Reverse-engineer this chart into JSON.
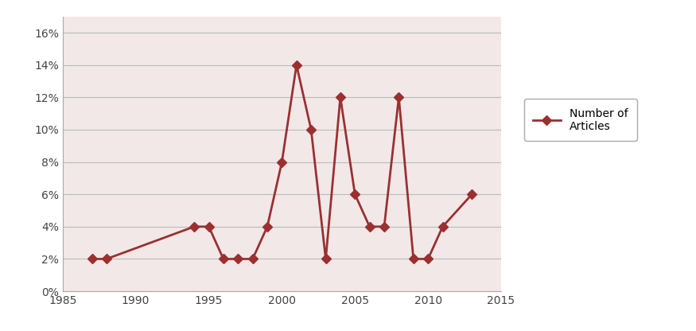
{
  "years": [
    1987,
    1988,
    1994,
    1995,
    1996,
    1997,
    1998,
    1999,
    2000,
    2001,
    2002,
    2003,
    2004,
    2005,
    2006,
    2007,
    2008,
    2009,
    2010,
    2011,
    2013
  ],
  "values": [
    0.02,
    0.02,
    0.04,
    0.04,
    0.02,
    0.02,
    0.02,
    0.04,
    0.08,
    0.14,
    0.1,
    0.02,
    0.12,
    0.06,
    0.04,
    0.04,
    0.12,
    0.02,
    0.02,
    0.04,
    0.06
  ],
  "line_color": "#9B3030",
  "marker": "D",
  "marker_size": 6,
  "line_width": 2.0,
  "legend_label": "Number of\nArticles",
  "xlim": [
    1985,
    2015
  ],
  "ylim": [
    0,
    0.17
  ],
  "xticks": [
    1985,
    1990,
    1995,
    2000,
    2005,
    2010,
    2015
  ],
  "yticks": [
    0.0,
    0.02,
    0.04,
    0.06,
    0.08,
    0.1,
    0.12,
    0.14,
    0.16
  ],
  "ytick_labels": [
    "0%",
    "2%",
    "4%",
    "6%",
    "8%",
    "10%",
    "12%",
    "14%",
    "16%"
  ],
  "background_color": "#F2E8E8",
  "fig_bg_color": "#FFFFFF",
  "grid_color": "#BBBBBB",
  "grid_linewidth": 0.8,
  "spine_color": "#AAAAAA"
}
